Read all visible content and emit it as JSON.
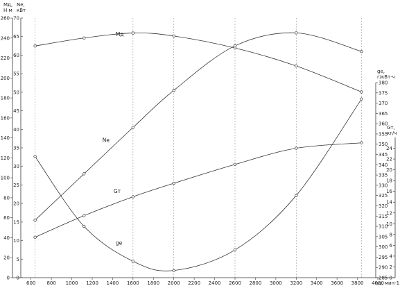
{
  "chart_data": {
    "type": "line",
    "axes": {
      "x": {
        "label": "nд, мин-1",
        "range": [
          500,
          4000
        ],
        "ticks": [
          "600",
          "800",
          "1000",
          "1200",
          "1400",
          "1600",
          "1800",
          "2000",
          "2200",
          "2400",
          "2600",
          "2800",
          "3000",
          "3200",
          "3400",
          "3600",
          "3800",
          "4000"
        ]
      },
      "md": {
        "label": "Mд, Н·м",
        "range": [
          0,
          260
        ],
        "ticks": [
          "0",
          "20",
          "40",
          "60",
          "80",
          "100",
          "120",
          "140",
          "160",
          "180",
          "200",
          "220",
          "240",
          "260"
        ]
      },
      "ne": {
        "label": "Ne, кВт",
        "range": [
          0,
          70
        ],
        "ticks": [
          "0",
          "5",
          "10",
          "15",
          "20",
          "25",
          "30",
          "35",
          "40",
          "45",
          "50",
          "55",
          "60",
          "65",
          "70"
        ]
      },
      "ge": {
        "label": "ge, г/кВт·ч",
        "range": [
          285,
          380
        ],
        "ticks": [
          "285",
          "290",
          "295",
          "300",
          "305",
          "310",
          "315",
          "320",
          "325",
          "330",
          "335",
          "340",
          "345",
          "350",
          "355",
          "360",
          "365",
          "370",
          "375",
          "380"
        ]
      },
      "gt": {
        "label": "Gт, кг/ч",
        "range": [
          0,
          26
        ],
        "ticks": [
          "0",
          "2",
          "4",
          "6",
          "8",
          "10",
          "12",
          "14",
          "16",
          "18",
          "20",
          "22",
          "24"
        ]
      }
    },
    "series": [
      {
        "name": "Mд",
        "axis": "md",
        "x": [
          640,
          1120,
          1600,
          2000,
          2600,
          3200,
          3840
        ],
        "y": [
          232,
          240,
          245,
          242,
          230,
          212,
          186
        ]
      },
      {
        "name": "Ne",
        "axis": "ne",
        "x": [
          640,
          1120,
          1600,
          2000,
          2600,
          3200,
          3840
        ],
        "y": [
          15.5,
          28,
          40.5,
          50.5,
          62.5,
          66,
          61
        ]
      },
      {
        "name": "Gт",
        "axis": "gt",
        "x": [
          640,
          1120,
          1600,
          2000,
          2600,
          3200,
          3840
        ],
        "y": [
          7.5,
          11.5,
          15,
          17.5,
          21,
          24,
          25
        ]
      },
      {
        "name": "ge",
        "axis": "ge",
        "x": [
          640,
          1120,
          1600,
          2000,
          2600,
          3200,
          3840
        ],
        "y": [
          344,
          310,
          293,
          288.5,
          298.5,
          325,
          372
        ]
      }
    ],
    "gridlines_x": [
      640,
      1600,
      2000,
      2600,
      3200,
      3840
    ],
    "grid": "dashed vertical lines at measurement speeds"
  }
}
